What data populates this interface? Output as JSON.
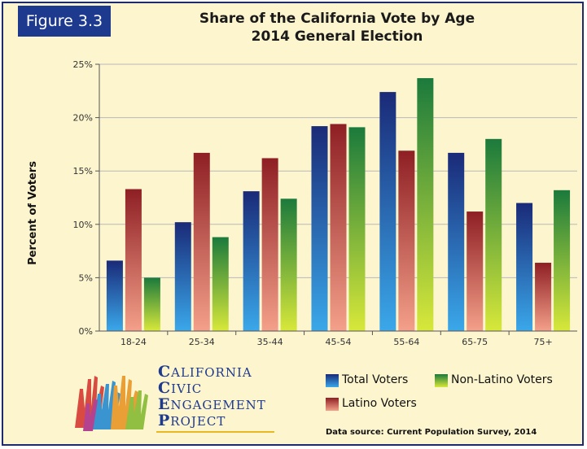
{
  "badge": "Figure 3.3",
  "title_line1": "Share of the California Vote by Age",
  "title_line2": "2014 General Election",
  "logo": {
    "words": [
      {
        "initial": "C",
        "rest": "ALIFORNIA"
      },
      {
        "initial": "C",
        "rest": "IVIC"
      },
      {
        "initial": "E",
        "rest": "NGAGEMENT"
      },
      {
        "initial": "P",
        "rest": "ROJECT"
      }
    ]
  },
  "source": "Data source: Current Population Survey, 2014",
  "colors": {
    "total": "#1f6fc4",
    "latino": "#c9403f",
    "nonlatino": "#3aa842"
  },
  "chart_data": {
    "type": "bar",
    "categories": [
      "18-24",
      "25-34",
      "35-44",
      "45-54",
      "55-64",
      "65-75",
      "75+"
    ],
    "series": [
      {
        "name": "Total Voters",
        "values": [
          6.6,
          10.2,
          13.1,
          19.2,
          22.4,
          16.7,
          12.0
        ]
      },
      {
        "name": "Latino Voters",
        "values": [
          13.3,
          16.7,
          16.2,
          19.4,
          16.9,
          11.2,
          6.4
        ]
      },
      {
        "name": "Non-Latino Voters",
        "values": [
          5.0,
          8.8,
          12.4,
          19.1,
          23.7,
          18.0,
          13.2
        ]
      }
    ],
    "ylabel": "Percent of Voters",
    "yticks": [
      "0%",
      "5%",
      "10%",
      "15%",
      "20%",
      "25%"
    ],
    "ylim": [
      0,
      25
    ],
    "legend_position": "bottom-right"
  }
}
